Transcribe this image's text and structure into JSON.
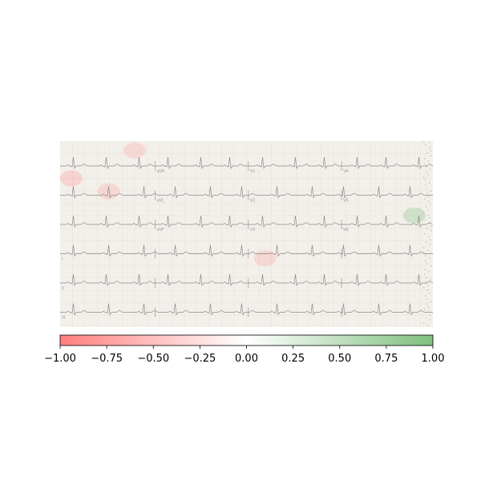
{
  "chart_data": {
    "type": "heatmap",
    "title": "",
    "xlabel": "",
    "ylabel": "",
    "background_image": "ecg-12-lead-paper-trace",
    "ecg_lead_labels": [
      "aVR",
      "V1",
      "V4",
      "aVL",
      "V2",
      "V5",
      "aVF",
      "V3",
      "V6",
      "I",
      "II",
      "III"
    ],
    "ecg_rows": 6,
    "colorbar": {
      "orientation": "horizontal",
      "range": [
        -1.0,
        1.0
      ],
      "ticks": [
        -1.0,
        -0.75,
        -0.5,
        -0.25,
        0.0,
        0.25,
        0.5,
        0.75,
        1.0
      ],
      "tick_labels": [
        "−1.00",
        "−0.75",
        "−0.50",
        "−0.25",
        "0.00",
        "0.25",
        "0.50",
        "0.75",
        "1.00"
      ],
      "color_low": "#ff7f7f",
      "color_mid": "#ffffff",
      "color_high": "#7fbf7f"
    },
    "attribution_hotspots": [
      {
        "column": 0.03,
        "row": 0.2,
        "value": -0.25
      },
      {
        "column": 0.2,
        "row": 0.05,
        "value": -0.2
      },
      {
        "column": 0.13,
        "row": 0.27,
        "value": -0.2
      },
      {
        "column": 0.55,
        "row": 0.63,
        "value": -0.2
      },
      {
        "column": 0.95,
        "row": 0.4,
        "value": 0.3
      }
    ]
  },
  "colors": {
    "paper": "#f4f1ec",
    "grid_major": "#e3d9d3",
    "trace": "#8c8c8c",
    "negative": "#ff7f7f",
    "positive": "#7fbf7f"
  }
}
